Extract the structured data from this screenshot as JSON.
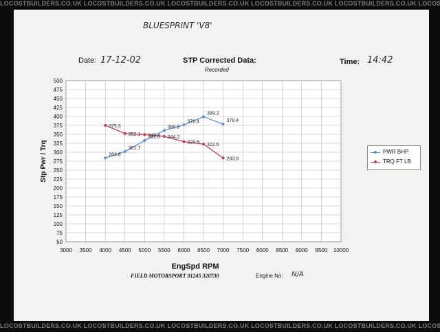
{
  "watermark": {
    "top": "LOCOSTBUILDERS.CO.UK   LOCOSTBUILDERS.CO.UK   LOCOSTBUILDERS.CO.UK   LOCOSTBUILDERS.CO.UK   LOCOSTBUILDERS.CO.UK   LOCOSTBUILDERS.CO.UK",
    "bottom": "LOCOSTBUILDERS.CO.UK   LOCOSTBUILDERS.CO.UK   LOCOSTBUILDERS.CO.UK   LOCOSTBUILDERS.CO.UK   LOCOSTBUILDERS.CO.UK   LOCOSTBUILDERS.CO.UK"
  },
  "sheet": {
    "handwritten_title": "BLUESPRINT 'V8'",
    "date_label": "Date:",
    "date_value": "17-12-02",
    "title": "STP Corrected Data:",
    "subtitle": "Recorded",
    "time_label": "Time:",
    "time_value": "14:42",
    "footer_company": "FIELD MOTORSPORT  01245 320730",
    "footer_engine_label": "Engine No:",
    "footer_engine_value": "N/A"
  },
  "colors": {
    "power": "#5b8fd6",
    "torque": "#c23a55",
    "grid": "#b5b5b5",
    "paper": "#f2f2f0",
    "background": "#0c0c0c"
  },
  "chart_data": {
    "type": "line",
    "xlabel": "EngSpd  RPM",
    "ylabel": "Stp Pwr / Trq",
    "xlim": [
      3000,
      10000
    ],
    "ylim": [
      50,
      500
    ],
    "x_ticks": [
      3000,
      3500,
      4000,
      4500,
      5000,
      5500,
      6000,
      6500,
      7000,
      7500,
      8000,
      8500,
      9000,
      9500,
      10000
    ],
    "y_ticks": [
      50,
      75,
      100,
      125,
      150,
      175,
      200,
      225,
      250,
      275,
      300,
      325,
      350,
      375,
      400,
      425,
      450,
      475,
      500
    ],
    "grid": true,
    "legend_position": "right",
    "series": [
      {
        "name": "PWR BHP",
        "color": "#5b8fd6",
        "x": [
          4000,
          4500,
          5000,
          5500,
          6000,
          6500,
          7000
        ],
        "values": [
          283.8,
          301.7,
          332.6,
          360.5,
          376.4,
          399.2,
          378.4
        ],
        "labels": [
          "283.8",
          "301.7",
          "332.6",
          "360.5",
          "376.4",
          "399.2",
          "378.4"
        ]
      },
      {
        "name": "TRQ FT LB",
        "color": "#c23a55",
        "x": [
          4000,
          4500,
          5000,
          5500,
          6000,
          6500,
          7000
        ],
        "values": [
          375.3,
          352.1,
          349.4,
          344.2,
          329.5,
          322.6,
          283.9
        ],
        "labels": [
          "375.3",
          "352.1",
          "349.4",
          "344.2",
          "329.5",
          "322.6",
          "283.9"
        ]
      }
    ]
  }
}
